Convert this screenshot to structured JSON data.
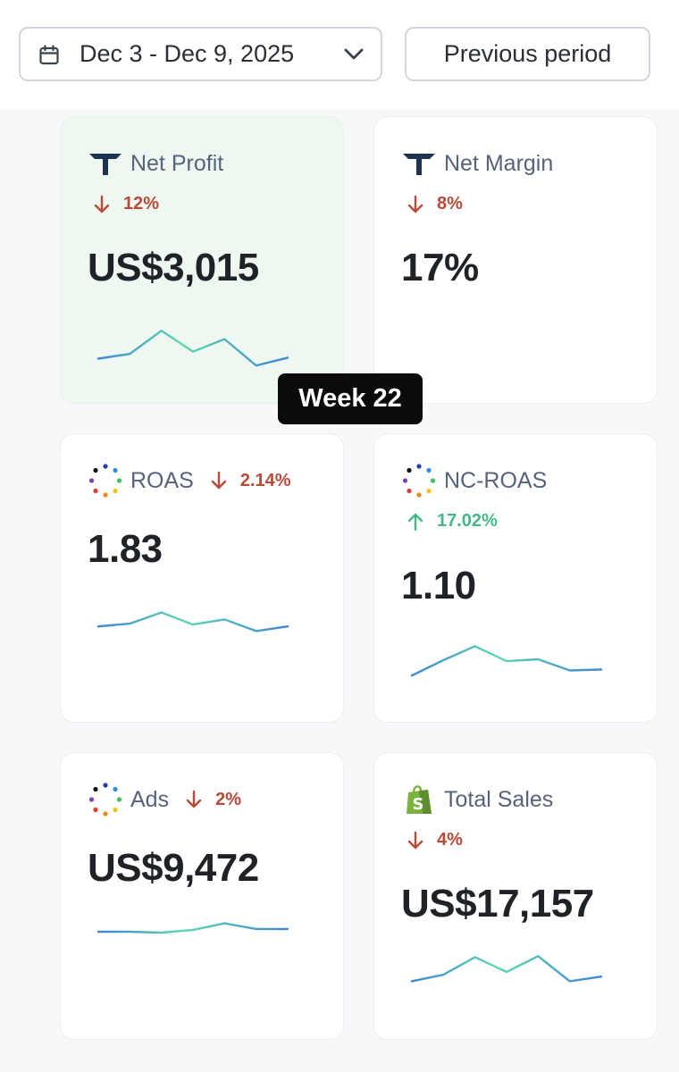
{
  "header": {
    "date_range": "Dec 3 - Dec 9, 2025",
    "compare_label": "Previous period"
  },
  "tooltip": {
    "label": "Week 22"
  },
  "colors": {
    "down": "#b84a37",
    "up": "#45b885",
    "highlight_card": "#eef8f1",
    "spark_start": "#3f86d1",
    "spark_end": "#5fd8b3"
  },
  "cards": [
    {
      "id": "net-profit",
      "icon": "triple-whale-icon",
      "title": "Net Profit",
      "change": "12%",
      "direction": "down",
      "value": "US$3,015",
      "spark": [
        0.3,
        0.4,
        0.9,
        0.45,
        0.72,
        0.15,
        0.32
      ]
    },
    {
      "id": "net-margin",
      "icon": "triple-whale-icon",
      "title": "Net Margin",
      "change": "8%",
      "direction": "down",
      "value": "17%"
    },
    {
      "id": "roas",
      "icon": "meta-dots-icon",
      "title": "ROAS",
      "change": "2.14%",
      "direction": "down",
      "value": "1.83",
      "spark": [
        0.4,
        0.46,
        0.7,
        0.44,
        0.55,
        0.3,
        0.4
      ]
    },
    {
      "id": "nc-roas",
      "icon": "meta-dots-icon",
      "title": "NC-ROAS",
      "change": "17.02%",
      "direction": "up",
      "value": "1.10",
      "spark": [
        0.15,
        0.48,
        0.78,
        0.46,
        0.5,
        0.26,
        0.28
      ]
    },
    {
      "id": "ads",
      "icon": "meta-dots-icon",
      "title": "Ads",
      "change": "2%",
      "direction": "down",
      "value": "US$9,472",
      "spark": [
        0.5,
        0.5,
        0.48,
        0.54,
        0.68,
        0.56,
        0.56
      ]
    },
    {
      "id": "total-sales",
      "icon": "shopify-icon",
      "title": "Total Sales",
      "change": "4%",
      "direction": "down",
      "value": "US$17,157",
      "spark": [
        0.3,
        0.44,
        0.82,
        0.5,
        0.84,
        0.3,
        0.4
      ]
    }
  ]
}
